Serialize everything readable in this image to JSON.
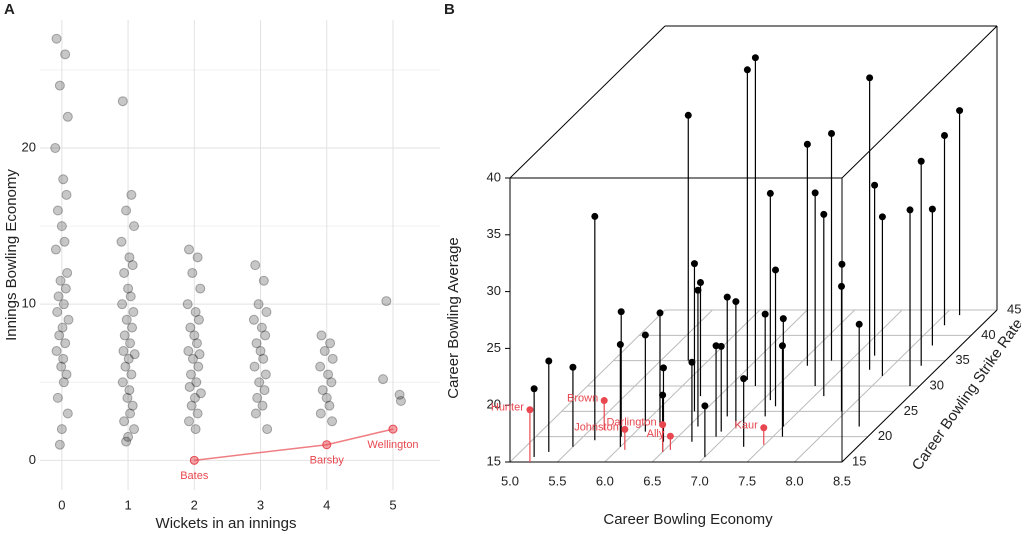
{
  "chart_data": [
    {
      "type": "strip",
      "panel": "A",
      "xlabel": "Wickets in an innings",
      "ylabel": "Innings Bowling Economy",
      "xlim": [
        -0.33,
        5.71
      ],
      "ylim": [
        -1.9,
        28.2
      ],
      "xticks": [
        0,
        1,
        2,
        3,
        4,
        5
      ],
      "yticks": [
        0,
        10,
        20
      ],
      "yminor": [
        5,
        15,
        25
      ],
      "grid": true,
      "points": {
        "color": "#000000",
        "x": [
          -0.08,
          0.05,
          -0.03,
          0.09,
          -0.1,
          0.02,
          0.07,
          -0.06,
          0,
          0.04,
          -0.09,
          0.08,
          -0.02,
          0.06,
          -0.05,
          0.03,
          -0.07,
          0.1,
          0.01,
          -0.04,
          0.05,
          -0.08,
          0.02,
          -0.01,
          0.07,
          0.03,
          -0.06,
          0.09,
          0,
          -0.03,
          0.92,
          1.05,
          0.97,
          1.09,
          0.9,
          1.02,
          1.07,
          0.94,
          1,
          1.04,
          0.91,
          1.08,
          0.98,
          1.06,
          0.95,
          1.03,
          0.93,
          1.1,
          1.01,
          0.96,
          1.05,
          0.92,
          1.02,
          0.99,
          1.07,
          1.03,
          0.94,
          1.09,
          1,
          0.97,
          1.92,
          2.05,
          1.97,
          2.09,
          1.9,
          2.02,
          2.07,
          1.94,
          2,
          2.04,
          1.91,
          2.08,
          1.98,
          2.06,
          1.95,
          2.03,
          1.93,
          2.1,
          2.01,
          1.96,
          2.05,
          1.92,
          2.02,
          2.92,
          3.05,
          2.97,
          3.09,
          2.9,
          3.02,
          3.07,
          2.94,
          3,
          3.04,
          2.91,
          3.08,
          2.98,
          3.06,
          2.95,
          3.03,
          2.93,
          3.1,
          3.92,
          4.05,
          3.97,
          4.09,
          3.9,
          4.02,
          4.07,
          3.94,
          4,
          4.04,
          3.91,
          4.08,
          4.9,
          4.85,
          5.1,
          5.12
        ],
        "y": [
          27,
          26,
          24,
          22,
          20,
          18,
          17,
          16,
          15,
          14,
          13.5,
          12,
          11.5,
          11,
          10.5,
          10,
          9.5,
          9,
          8.5,
          8,
          7.5,
          7,
          6.5,
          6,
          5.5,
          5,
          4,
          3,
          2,
          1,
          23,
          17,
          16,
          15,
          14,
          13,
          12.5,
          12,
          11,
          10.5,
          10,
          9.5,
          9,
          8.5,
          8,
          7.5,
          7,
          6.8,
          6.5,
          6,
          5.5,
          5,
          4.5,
          4,
          3.5,
          3,
          2.5,
          2,
          1.5,
          1.2,
          13.5,
          13,
          12,
          11,
          10,
          9.5,
          9,
          8.5,
          8,
          7.5,
          7,
          6.8,
          6.5,
          6,
          5.5,
          5,
          4.7,
          4.3,
          4,
          3.5,
          3,
          2.5,
          2,
          12.5,
          11.5,
          10,
          9.5,
          9,
          8.5,
          8,
          7.5,
          7,
          6.5,
          6,
          5.5,
          5,
          4.5,
          4,
          3.5,
          3,
          2,
          8,
          7.5,
          7,
          6.5,
          6,
          5.5,
          5,
          4.5,
          4,
          3.5,
          3,
          2.5,
          10.2,
          5.2,
          4.2,
          3.8
        ]
      },
      "highlight": {
        "color": "#e8474f",
        "x": [
          2,
          4,
          5
        ],
        "y": [
          0,
          1,
          2
        ],
        "labels": [
          "Bates",
          "Barsby",
          "Wellington"
        ]
      }
    },
    {
      "type": "scatter3d",
      "panel": "B",
      "xlabel": "Career Bowling Economy",
      "ylabel": "Career Bowling Strike Rate",
      "zlabel": "Career Bowling Average",
      "xlim": [
        5,
        8.5
      ],
      "ylim": [
        15,
        45
      ],
      "zlim": [
        15,
        40
      ],
      "xticks": [
        {
          "value": 5,
          "label": "5.0"
        },
        5.5,
        {
          "value": 6,
          "label": "6.0"
        },
        6.5,
        {
          "value": 7,
          "label": "7.0"
        },
        7.5,
        {
          "value": 8,
          "label": "8.0"
        },
        8.5
      ],
      "yticks": [
        15,
        20,
        25,
        30,
        35,
        40,
        45
      ],
      "zticks": [
        15,
        20,
        25,
        30,
        35,
        40
      ],
      "points": {
        "color": "#000000",
        "x": [
          6.77,
          6.62,
          5.79,
          7.08,
          5.66,
          7.8,
          8.16,
          8.11,
          7.3,
          7.1,
          7.4,
          7.6,
          7.7,
          8.0,
          7.9,
          8.3,
          8.4,
          8.2,
          6.4,
          6.2,
          5.9,
          5.5,
          5.3,
          5.2,
          6.0,
          6.3,
          6.6,
          6.8,
          7.0,
          6.9,
          7.2,
          6.7,
          6.5,
          7.3,
          7.0,
          6.9,
          7.5,
          7.2,
          6.4,
          6.1,
          7.6,
          8.3,
          7.95
        ],
        "y": [
          30,
          31.2,
          35,
          27.2,
          19.3,
          33.2,
          44,
          42,
          35,
          34,
          30,
          28,
          36,
          32,
          26,
          22,
          30,
          38,
          25,
          22,
          20,
          18,
          17,
          16,
          18,
          28,
          22,
          24,
          22,
          20,
          24,
          19,
          17,
          18,
          16,
          21,
          22,
          26,
          19,
          21,
          20,
          34,
          25
        ],
        "z": [
          43.9,
          42.3,
          36.6,
          33.2,
          34.7,
          40.7,
          33,
          31.7,
          35,
          34.5,
          32,
          31,
          30,
          29,
          27.5,
          24,
          30.5,
          27,
          28,
          25,
          26,
          22,
          23,
          21,
          24,
          25,
          27,
          25.5,
          26,
          23,
          24,
          22,
          20,
          21,
          19.5,
          22.5,
          24.5,
          27,
          21.5,
          23.5,
          23,
          33,
          26
        ]
      },
      "highlight": {
        "color": "#e8474f",
        "labels": [
          "Hunter",
          "Brown",
          "Johnston",
          "Darlington",
          "Ally",
          "Kaur"
        ],
        "x": [
          5.21,
          5.65,
          6.08,
          6.5,
          6.56,
          7.49
        ],
        "y": [
          15,
          21.3,
          17.4,
          17,
          17.4,
          18.4
        ],
        "z": [
          19.6,
          17.6,
          16.8,
          17.4,
          16.2,
          16.5
        ]
      }
    }
  ]
}
